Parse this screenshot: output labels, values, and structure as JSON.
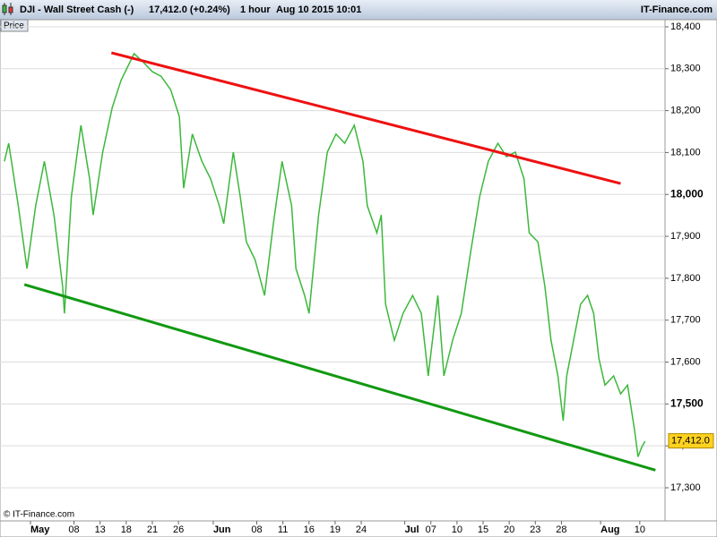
{
  "header": {
    "instrument": "DJI - Wall Street Cash (-)",
    "quote": "17,412.0 (+0.24%)",
    "interval": "1 hour",
    "timestamp": "Aug 10 2015 10:01",
    "brand": "IT-Finance.com"
  },
  "chart_data": {
    "type": "line",
    "axis_label": "Price",
    "watermark": "© IT-Finance.com",
    "xlim": [
      -3.5,
      72.9
    ],
    "ylim": [
      17221,
      18417
    ],
    "grid": true,
    "xticks": [
      {
        "value": 0,
        "label": "May"
      },
      {
        "value": 5,
        "label": "08"
      },
      {
        "value": 8,
        "label": "13"
      },
      {
        "value": 11,
        "label": "18"
      },
      {
        "value": 14,
        "label": "21"
      },
      {
        "value": 17,
        "label": "26"
      },
      {
        "value": 21,
        "label": "Jun"
      },
      {
        "value": 26,
        "label": "08"
      },
      {
        "value": 29,
        "label": "11"
      },
      {
        "value": 32,
        "label": "16"
      },
      {
        "value": 35,
        "label": "19"
      },
      {
        "value": 38,
        "label": "24"
      },
      {
        "value": 43,
        "label": "Jul"
      },
      {
        "value": 46,
        "label": "07"
      },
      {
        "value": 49,
        "label": "10"
      },
      {
        "value": 52,
        "label": "15"
      },
      {
        "value": 55,
        "label": "20"
      },
      {
        "value": 58,
        "label": "23"
      },
      {
        "value": 61,
        "label": "28"
      },
      {
        "value": 65.5,
        "label": "Aug"
      },
      {
        "value": 70,
        "label": "10"
      }
    ],
    "yticks": [
      {
        "value": 17300,
        "label": "17,300"
      },
      {
        "value": 17400,
        "label": "17,400"
      },
      {
        "value": 17500,
        "label": "17,500"
      },
      {
        "value": 17600,
        "label": "17,600"
      },
      {
        "value": 17700,
        "label": "17,700"
      },
      {
        "value": 17800,
        "label": "17,800"
      },
      {
        "value": 17900,
        "label": "17,900"
      },
      {
        "value": 18000,
        "label": "18,000"
      },
      {
        "value": 18100,
        "label": "18,100"
      },
      {
        "value": 18200,
        "label": "18,200"
      },
      {
        "value": 18300,
        "label": "18,300"
      },
      {
        "value": 18400,
        "label": "18,400"
      }
    ],
    "series": [
      {
        "color": "#3cb83c",
        "x": [
          -3.0,
          -2.5,
          -1.4,
          -0.4,
          0.6,
          1.6,
          2.7,
          3.7,
          3.9,
          4.7,
          5.8,
          6.8,
          7.2,
          8.3,
          9.4,
          10.4,
          11.9,
          13.0,
          14.0,
          15.0,
          16.1,
          17.1,
          17.6,
          18.6,
          19.7,
          20.7,
          21.7,
          22.2,
          23.3,
          24.1,
          24.8,
          25.8,
          26.9,
          27.9,
          28.9,
          30.0,
          30.5,
          31.5,
          32.0,
          33.1,
          34.1,
          35.1,
          36.1,
          37.2,
          38.2,
          38.7,
          39.8,
          40.3,
          40.8,
          41.8,
          42.8,
          43.9,
          44.9,
          45.7,
          46.8,
          47.5,
          48.5,
          49.5,
          50.6,
          51.6,
          52.6,
          53.7,
          54.7,
          55.7,
          56.7,
          57.3,
          58.3,
          59.1,
          59.8,
          60.6,
          61.2,
          61.6,
          62.4,
          63.2,
          64.0,
          64.7,
          65.3,
          66.0,
          67.0,
          67.8,
          68.6,
          69.4,
          69.8,
          70.2,
          70.6
        ],
        "values": [
          18079,
          18122,
          17973,
          17823,
          17973,
          18079,
          17951,
          17780,
          17716,
          17994,
          18165,
          18037,
          17951,
          18101,
          18208,
          18272,
          18336,
          18315,
          18293,
          18282,
          18250,
          18186,
          18015,
          18144,
          18079,
          18037,
          17973,
          17930,
          18101,
          17994,
          17887,
          17844,
          17759,
          17930,
          18079,
          17973,
          17823,
          17759,
          17716,
          17951,
          18101,
          18144,
          18122,
          18165,
          18079,
          17973,
          17908,
          17951,
          17738,
          17652,
          17716,
          17759,
          17716,
          17567,
          17759,
          17567,
          17652,
          17716,
          17866,
          17994,
          18079,
          18122,
          18090,
          18101,
          18037,
          17908,
          17887,
          17780,
          17652,
          17567,
          17460,
          17567,
          17652,
          17738,
          17759,
          17716,
          17609,
          17545,
          17567,
          17524,
          17545,
          17438,
          17374,
          17396,
          17411
        ]
      }
    ],
    "trendlines": [
      {
        "color": "#ee1111",
        "x": [
          9.3,
          67.8
        ],
        "values": [
          18338,
          18026
        ]
      },
      {
        "color": "#119911",
        "x": [
          -0.7,
          71.8
        ],
        "values": [
          17785,
          17342
        ]
      }
    ],
    "last_price": {
      "value": 17412,
      "label": "17,412.0"
    }
  }
}
